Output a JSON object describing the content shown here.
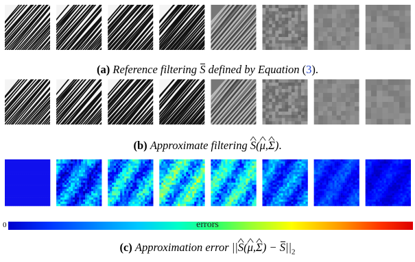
{
  "figure": {
    "row_a": {
      "tiles": 8
    },
    "row_b": {
      "tiles": 8
    },
    "row_c": {
      "tiles": 8
    },
    "caption_a": {
      "label": "(a)",
      "text": "Reference filtering",
      "symbol": "S",
      "text2": "defined by Equation",
      "ref": "3"
    },
    "caption_b": {
      "label": "(b)",
      "text": "Approximate filtering",
      "symbol": "S(μ,Σ)"
    },
    "caption_c": {
      "label": "(c)",
      "text": "Approximation error",
      "formula": "||S(μ,Σ) − S||₂"
    },
    "colorbar": {
      "min_label": "0",
      "title": "errors",
      "colormap": "jet"
    }
  }
}
